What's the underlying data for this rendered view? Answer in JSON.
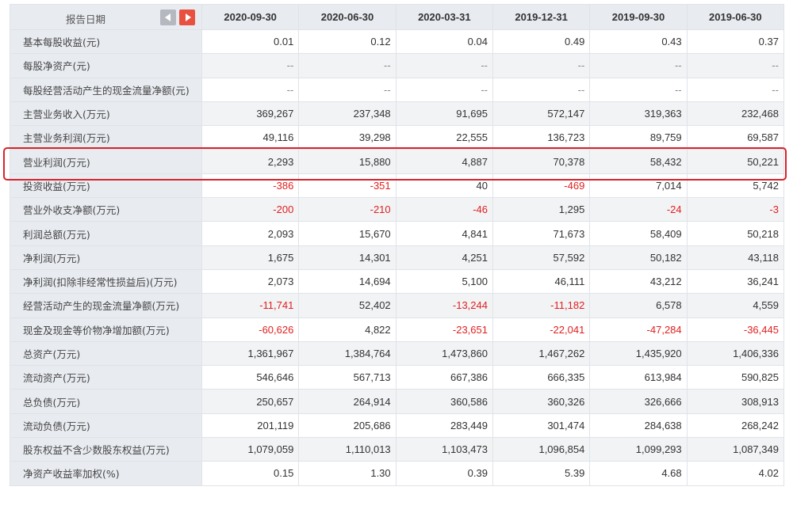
{
  "header": {
    "label": "报告日期",
    "dates": [
      "2020-09-30",
      "2020-06-30",
      "2020-03-31",
      "2019-12-31",
      "2019-09-30",
      "2019-06-30"
    ]
  },
  "rows": [
    {
      "label": "基本每股收益(元)",
      "values": [
        "0.01",
        "0.12",
        "0.04",
        "0.49",
        "0.43",
        "0.37"
      ]
    },
    {
      "label": "每股净资产(元)",
      "values": [
        "--",
        "--",
        "--",
        "--",
        "--",
        "--"
      ]
    },
    {
      "label": "每股经营活动产生的现金流量净额(元)",
      "values": [
        "--",
        "--",
        "--",
        "--",
        "--",
        "--"
      ]
    },
    {
      "label": "主营业务收入(万元)",
      "values": [
        "369,267",
        "237,348",
        "91,695",
        "572,147",
        "319,363",
        "232,468"
      ]
    },
    {
      "label": "主营业务利润(万元)",
      "values": [
        "49,116",
        "39,298",
        "22,555",
        "136,723",
        "89,759",
        "69,587"
      ]
    },
    {
      "label": "营业利润(万元)",
      "values": [
        "2,293",
        "15,880",
        "4,887",
        "70,378",
        "58,432",
        "50,221"
      ]
    },
    {
      "label": "投资收益(万元)",
      "values": [
        "-386",
        "-351",
        "40",
        "-469",
        "7,014",
        "5,742"
      ]
    },
    {
      "label": "营业外收支净额(万元)",
      "values": [
        "-200",
        "-210",
        "-46",
        "1,295",
        "-24",
        "-3"
      ]
    },
    {
      "label": "利润总额(万元)",
      "values": [
        "2,093",
        "15,670",
        "4,841",
        "71,673",
        "58,409",
        "50,218"
      ]
    },
    {
      "label": "净利润(万元)",
      "values": [
        "1,675",
        "14,301",
        "4,251",
        "57,592",
        "50,182",
        "43,118"
      ]
    },
    {
      "label": "净利润(扣除非经常性损益后)(万元)",
      "values": [
        "2,073",
        "14,694",
        "5,100",
        "46,111",
        "43,212",
        "36,241"
      ]
    },
    {
      "label": "经营活动产生的现金流量净额(万元)",
      "values": [
        "-11,741",
        "52,402",
        "-13,244",
        "-11,182",
        "6,578",
        "4,559"
      ]
    },
    {
      "label": "现金及现金等价物净增加额(万元)",
      "values": [
        "-60,626",
        "4,822",
        "-23,651",
        "-22,041",
        "-47,284",
        "-36,445"
      ]
    },
    {
      "label": "总资产(万元)",
      "values": [
        "1,361,967",
        "1,384,764",
        "1,473,860",
        "1,467,262",
        "1,435,920",
        "1,406,336"
      ]
    },
    {
      "label": "流动资产(万元)",
      "values": [
        "546,646",
        "567,713",
        "667,386",
        "666,335",
        "613,984",
        "590,825"
      ]
    },
    {
      "label": "总负债(万元)",
      "values": [
        "250,657",
        "264,914",
        "360,586",
        "360,326",
        "326,666",
        "308,913"
      ]
    },
    {
      "label": "流动负债(万元)",
      "values": [
        "201,119",
        "205,686",
        "283,449",
        "301,474",
        "284,638",
        "268,242"
      ]
    },
    {
      "label": "股东权益不含少数股东权益(万元)",
      "values": [
        "1,079,059",
        "1,110,013",
        "1,103,473",
        "1,096,854",
        "1,099,293",
        "1,087,349"
      ]
    },
    {
      "label": "净资产收益率加权(%)",
      "values": [
        "0.15",
        "1.30",
        "0.39",
        "5.39",
        "4.68",
        "4.02"
      ]
    }
  ],
  "colors": {
    "negative": "#e02020",
    "highlight_border": "#d8232a",
    "nav_next_bg": "#e8513f",
    "nav_prev_bg": "#b5b9bf",
    "header_bg": "#e8ebf0"
  },
  "icons": {
    "prev": "chevron-left-icon",
    "next": "chevron-right-icon"
  },
  "highlighted_row": "营业利润(万元)"
}
